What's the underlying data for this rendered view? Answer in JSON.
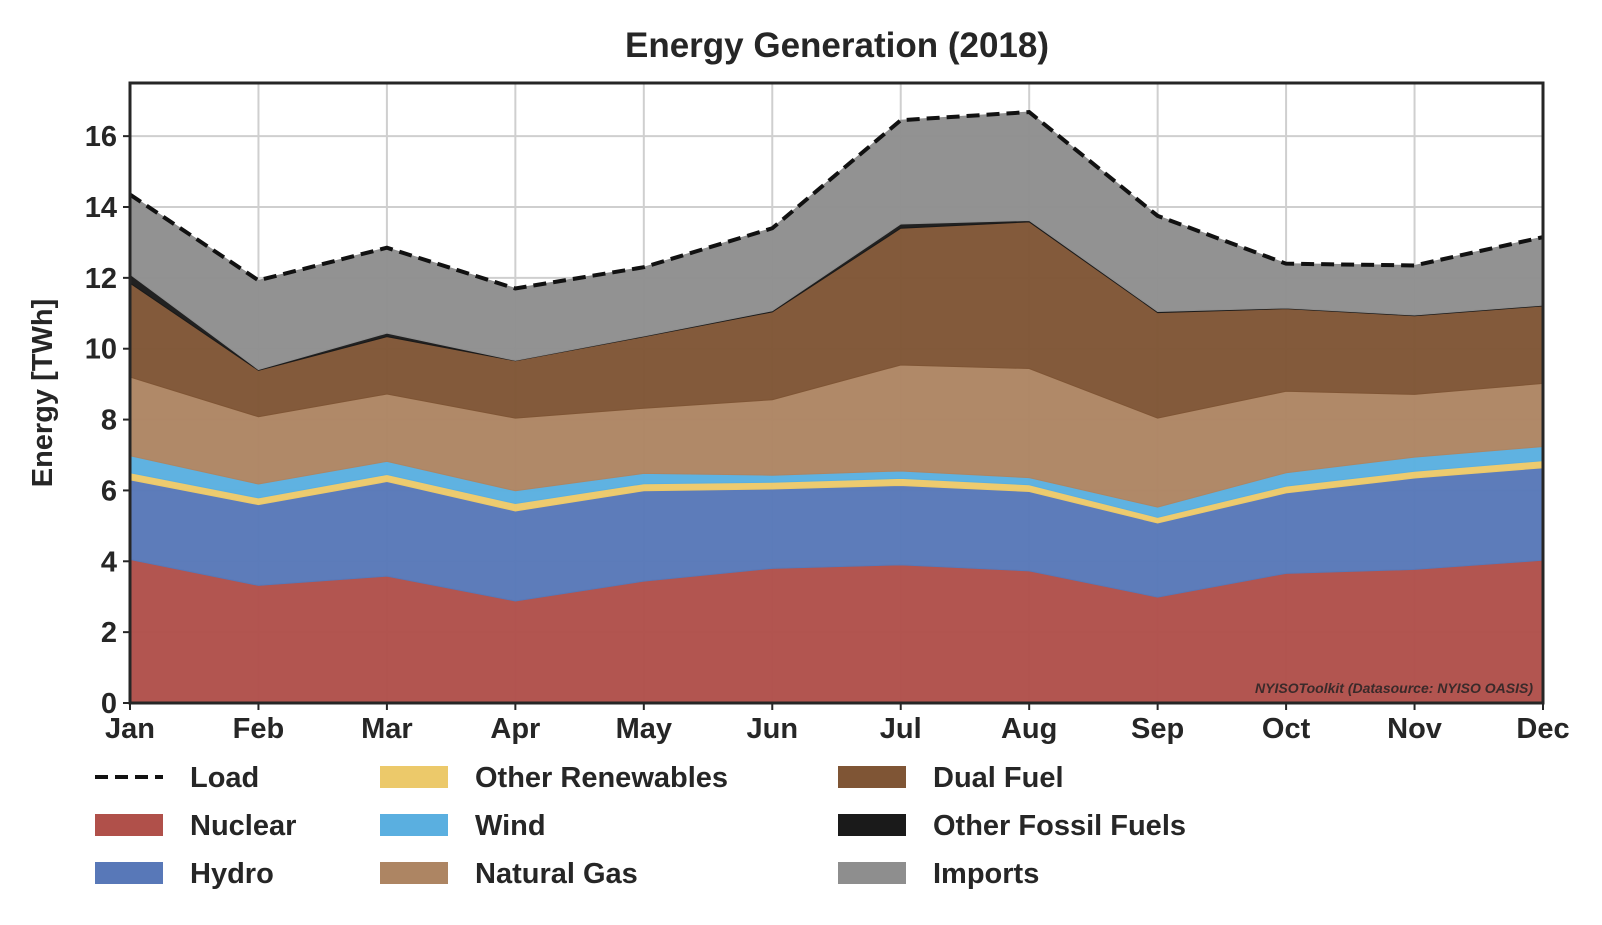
{
  "chart_data": {
    "type": "area",
    "stacked": true,
    "title": "Energy Generation (2018)",
    "xlabel": "",
    "ylabel": "Energy [TWh]",
    "ylim": [
      0,
      17.5
    ],
    "yticks": [
      0,
      2,
      4,
      6,
      8,
      10,
      12,
      14,
      16
    ],
    "grid": true,
    "legend_position": "below",
    "categories": [
      "Jan",
      "Feb",
      "Mar",
      "Apr",
      "May",
      "Jun",
      "Jul",
      "Aug",
      "Sep",
      "Oct",
      "Nov",
      "Dec"
    ],
    "series": [
      {
        "name": "Nuclear",
        "color": "#b0504a",
        "values": [
          4.05,
          3.32,
          3.58,
          2.88,
          3.44,
          3.8,
          3.9,
          3.73,
          2.99,
          3.66,
          3.77,
          4.03
        ]
      },
      {
        "name": "Hydro",
        "color": "#5878b8",
        "values": [
          2.25,
          2.28,
          2.67,
          2.54,
          2.55,
          2.24,
          2.24,
          2.24,
          2.09,
          2.27,
          2.58,
          2.61
        ]
      },
      {
        "name": "Other Renewables",
        "color": "#ecc96a",
        "values": [
          0.2,
          0.19,
          0.2,
          0.21,
          0.2,
          0.19,
          0.2,
          0.19,
          0.16,
          0.19,
          0.19,
          0.2
        ]
      },
      {
        "name": "Wind",
        "color": "#5aafe0",
        "values": [
          0.48,
          0.39,
          0.37,
          0.36,
          0.29,
          0.2,
          0.21,
          0.2,
          0.29,
          0.38,
          0.4,
          0.4
        ]
      },
      {
        "name": "Natural Gas",
        "color": "#ad8563",
        "values": [
          2.22,
          1.9,
          1.9,
          2.05,
          1.84,
          2.13,
          2.99,
          3.08,
          2.51,
          2.3,
          1.77,
          1.78
        ]
      },
      {
        "name": "Dual Fuel",
        "color": "#7f5535",
        "values": [
          2.65,
          1.31,
          1.62,
          1.62,
          2.02,
          2.48,
          3.86,
          4.14,
          2.98,
          2.33,
          2.22,
          2.19
        ]
      },
      {
        "name": "Other Fossil Fuels",
        "color": "#1a1a1a",
        "values": [
          0.25,
          0.02,
          0.1,
          0.01,
          0.02,
          0.03,
          0.12,
          0.04,
          0.03,
          0.02,
          0.02,
          0.02
        ]
      },
      {
        "name": "Imports",
        "color": "#8e8e8e",
        "values": [
          2.25,
          2.52,
          2.41,
          2.03,
          1.94,
          2.33,
          2.93,
          3.06,
          2.7,
          1.25,
          1.4,
          1.92
        ]
      }
    ],
    "line_series": [
      {
        "name": "Load",
        "style": "dashed",
        "color": "#111111",
        "values": [
          14.35,
          11.93,
          12.85,
          11.7,
          12.3,
          13.4,
          16.45,
          16.68,
          13.75,
          12.4,
          12.35,
          13.15
        ]
      }
    ],
    "legend_order": [
      "Load",
      "Nuclear",
      "Hydro",
      "Other Renewables",
      "Wind",
      "Natural Gas",
      "Dual Fuel",
      "Other Fossil Fuels",
      "Imports"
    ],
    "annotation": "NYISOToolkit (Datasource: NYISO OASIS)"
  }
}
